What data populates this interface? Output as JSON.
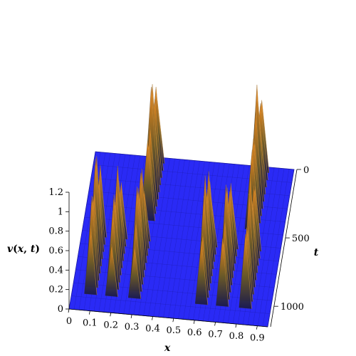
{
  "chart_data": {
    "type": "surface3d",
    "title": "",
    "xlabel": "x",
    "ylabel": "t",
    "zlabel_parts": [
      "v",
      "(",
      "x",
      ", ",
      "t",
      ")"
    ],
    "xlim": [
      0,
      0.95
    ],
    "tlim": [
      0,
      1150
    ],
    "zlim": [
      0,
      1.2
    ],
    "x_ticks": [
      0,
      0.1,
      0.2,
      0.3,
      0.4,
      0.5,
      0.6,
      0.7,
      0.8,
      0.9
    ],
    "t_ticks": [
      0,
      500,
      1000
    ],
    "z_ticks": [
      0,
      0.2,
      0.4,
      0.6,
      0.8,
      1,
      1.2
    ],
    "x_tick_labels": [
      "0",
      "0.1",
      "0.2",
      "0.3",
      "0.4",
      "0.5",
      "0.6",
      "0.7",
      "0.8",
      "0.9"
    ],
    "t_tick_labels": [
      "0",
      "500",
      "1000"
    ],
    "z_tick_labels": [
      "0",
      "0.2",
      "0.4",
      "0.6",
      "0.8",
      "1",
      "1.2"
    ],
    "ridges": [
      {
        "x_center": 0.09,
        "t_center": 820,
        "peak": 1.18,
        "width": 0.03
      },
      {
        "x_center": 0.19,
        "t_center": 820,
        "peak": 1.05,
        "width": 0.03
      },
      {
        "x_center": 0.3,
        "t_center": 820,
        "peak": 1.1,
        "width": 0.03
      },
      {
        "x_center": 0.62,
        "t_center": 820,
        "peak": 1.15,
        "width": 0.03
      },
      {
        "x_center": 0.72,
        "t_center": 820,
        "peak": 1.05,
        "width": 0.03
      },
      {
        "x_center": 0.83,
        "t_center": 820,
        "peak": 1.1,
        "width": 0.03
      },
      {
        "x_center": 0.3,
        "t_center": 250,
        "peak": 1.2,
        "width": 0.035
      },
      {
        "x_center": 0.8,
        "t_center": 250,
        "peak": 1.2,
        "width": 0.035
      }
    ],
    "colors": {
      "base": "#2a2af5",
      "base_grid": "#1a1aa0",
      "peak_low": "#1a1a4a",
      "peak_mid": "#7a6a2a",
      "peak_high": "#e8841a"
    }
  }
}
